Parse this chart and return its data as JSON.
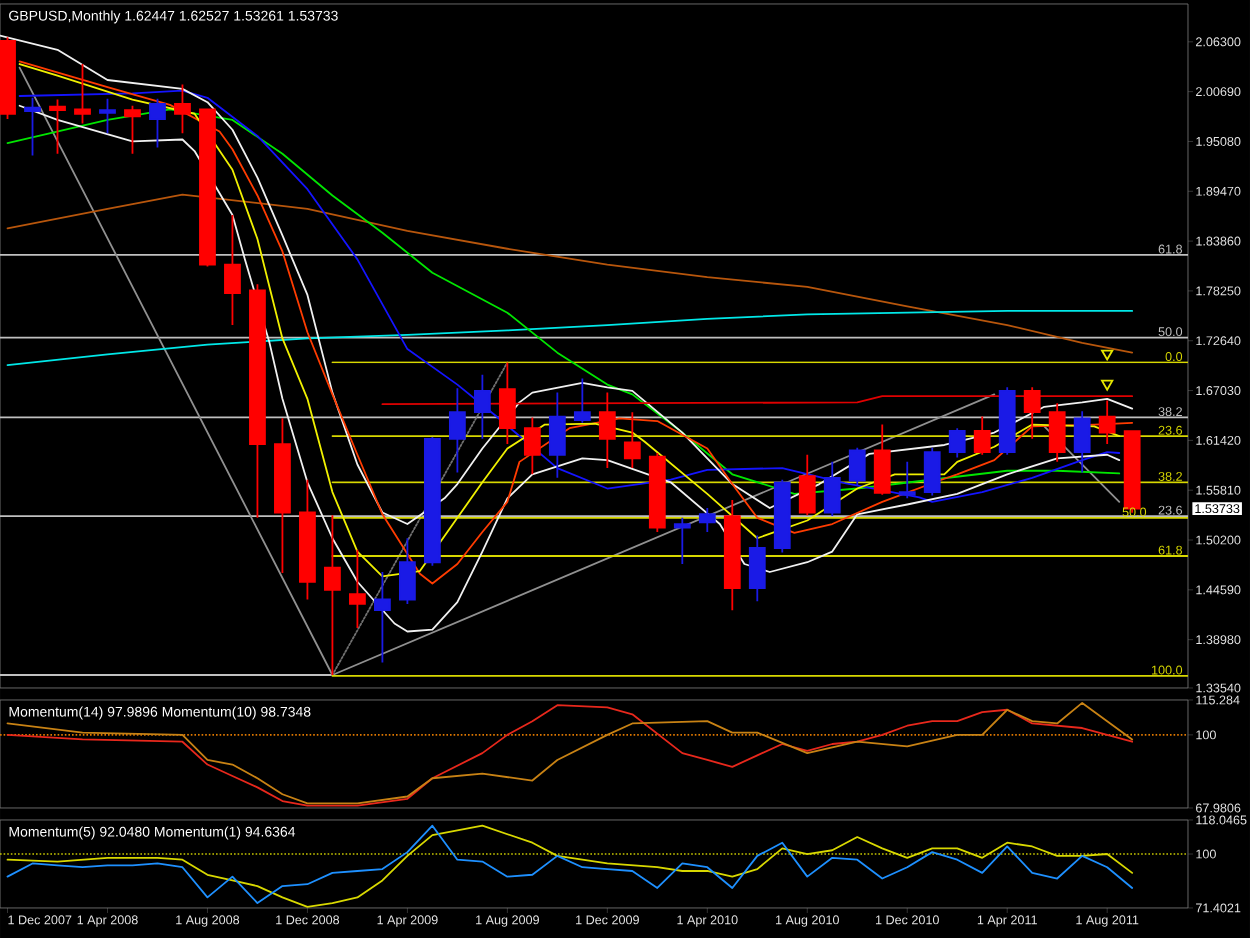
{
  "chart_data": [
    {
      "type": "candlestick",
      "title": "GBPUSD,Monthly 1.62447 1.62527 1.53261 1.53733",
      "x": [
        "2007-12",
        "2008-01",
        "2008-02",
        "2008-03",
        "2008-04",
        "2008-05",
        "2008-06",
        "2008-07",
        "2008-08",
        "2008-09",
        "2008-10",
        "2008-11",
        "2008-12",
        "2009-01",
        "2009-02",
        "2009-03",
        "2009-04",
        "2009-05",
        "2009-06",
        "2009-07",
        "2009-08",
        "2009-09",
        "2009-10",
        "2009-11",
        "2009-12",
        "2010-01",
        "2010-02",
        "2010-03",
        "2010-04",
        "2010-05",
        "2010-06",
        "2010-07",
        "2010-08",
        "2010-09",
        "2010-10",
        "2010-11",
        "2010-12",
        "2011-01",
        "2011-02",
        "2011-03",
        "2011-04",
        "2011-05",
        "2011-06",
        "2011-07",
        "2011-08",
        "2011-09"
      ],
      "ohlc": [
        [
          2.064,
          2.068,
          1.976,
          1.982
        ],
        [
          1.985,
          2.0,
          1.935,
          1.989
        ],
        [
          1.99,
          1.998,
          1.937,
          1.986
        ],
        [
          1.987,
          2.038,
          1.971,
          1.982
        ],
        [
          1.983,
          1.999,
          1.96,
          1.986
        ],
        [
          1.986,
          1.991,
          1.937,
          1.979
        ],
        [
          1.976,
          1.999,
          1.944,
          1.993
        ],
        [
          1.993,
          2.015,
          1.96,
          1.982
        ],
        [
          1.987,
          1.988,
          1.81,
          1.812
        ],
        [
          1.812,
          1.868,
          1.744,
          1.78
        ],
        [
          1.783,
          1.79,
          1.527,
          1.61
        ],
        [
          1.61,
          1.639,
          1.465,
          1.533
        ],
        [
          1.533,
          1.57,
          1.435,
          1.455
        ],
        [
          1.471,
          1.53,
          1.35,
          1.446
        ],
        [
          1.441,
          1.491,
          1.403,
          1.43
        ],
        [
          1.423,
          1.466,
          1.364,
          1.435
        ],
        [
          1.435,
          1.504,
          1.43,
          1.477
        ],
        [
          1.477,
          1.618,
          1.473,
          1.616
        ],
        [
          1.616,
          1.673,
          1.578,
          1.646
        ],
        [
          1.646,
          1.688,
          1.616,
          1.67
        ],
        [
          1.672,
          1.702,
          1.61,
          1.628
        ],
        [
          1.628,
          1.64,
          1.576,
          1.598
        ],
        [
          1.598,
          1.668,
          1.572,
          1.641
        ],
        [
          1.637,
          1.684,
          1.634,
          1.646
        ],
        [
          1.646,
          1.668,
          1.583,
          1.616
        ],
        [
          1.612,
          1.646,
          1.583,
          1.594
        ],
        [
          1.596,
          1.6,
          1.511,
          1.516
        ],
        [
          1.516,
          1.527,
          1.475,
          1.52
        ],
        [
          1.522,
          1.538,
          1.511,
          1.531
        ],
        [
          1.529,
          1.547,
          1.423,
          1.448
        ],
        [
          1.448,
          1.507,
          1.433,
          1.493
        ],
        [
          1.493,
          1.57,
          1.488,
          1.567
        ],
        [
          1.574,
          1.598,
          1.53,
          1.533
        ],
        [
          1.533,
          1.59,
          1.529,
          1.572
        ],
        [
          1.569,
          1.606,
          1.564,
          1.603
        ],
        [
          1.603,
          1.632,
          1.553,
          1.555
        ],
        [
          1.553,
          1.59,
          1.549,
          1.556
        ],
        [
          1.556,
          1.606,
          1.552,
          1.601
        ],
        [
          1.601,
          1.628,
          1.595,
          1.625
        ],
        [
          1.625,
          1.641,
          1.598,
          1.601
        ],
        [
          1.601,
          1.674,
          1.598,
          1.67
        ],
        [
          1.67,
          1.674,
          1.616,
          1.646
        ],
        [
          1.646,
          1.656,
          1.59,
          1.601
        ],
        [
          1.601,
          1.647,
          1.578,
          1.639
        ],
        [
          1.641,
          1.659,
          1.61,
          1.623
        ],
        [
          1.62447,
          1.62527,
          1.53261,
          1.53733
        ]
      ],
      "colors": [
        "#ff0000",
        "#1a1ae6",
        "#ff0000",
        "#ff0000",
        "#1a1ae6",
        "#ff0000",
        "#1a1ae6",
        "#ff0000",
        "#ff0000",
        "#ff0000",
        "#ff0000",
        "#ff0000",
        "#ff0000",
        "#ff0000",
        "#ff0000",
        "#1a1ae6",
        "#1a1ae6",
        "#1a1ae6",
        "#1a1ae6",
        "#1a1ae6",
        "#ff0000",
        "#ff0000",
        "#1a1ae6",
        "#1a1ae6",
        "#ff0000",
        "#ff0000",
        "#ff0000",
        "#1a1ae6",
        "#1a1ae6",
        "#ff0000",
        "#1a1ae6",
        "#1a1ae6",
        "#ff0000",
        "#1a1ae6",
        "#1a1ae6",
        "#ff0000",
        "#1a1ae6",
        "#1a1ae6",
        "#1a1ae6",
        "#ff0000",
        "#1a1ae6",
        "#ff0000",
        "#ff0000",
        "#1a1ae6",
        "#ff0000",
        "#ff0000"
      ],
      "series": [
        {
          "type": "line",
          "name": "61.8",
          "color": "#c0c0c0",
          "x": [
            "2007-11-22",
            "2011-11-08"
          ],
          "values": [
            1.823,
            1.823
          ]
        },
        {
          "type": "line",
          "name": "50.0",
          "color": "#c0c0c0",
          "x": [
            "2007-11-22",
            "2011-11-08"
          ],
          "values": [
            1.73,
            1.73
          ]
        },
        {
          "type": "line",
          "name": "38.2",
          "color": "#c0c0c0",
          "x": [
            "2007-11-22",
            "2011-11-08"
          ],
          "values": [
            1.64,
            1.64
          ]
        },
        {
          "type": "line",
          "name": "23.6",
          "color": "#c0c0c0",
          "x": [
            "2007-11-22",
            "2011-11-08"
          ],
          "values": [
            1.529,
            1.529
          ]
        },
        {
          "type": "line",
          "color": "#c0c0c0",
          "x": [
            "2007-11-22",
            "2009-01"
          ],
          "values": [
            1.35,
            1.35
          ]
        },
        {
          "type": "line",
          "color": "#909090",
          "x": [
            "2007-12-16",
            "2009-01"
          ],
          "values": [
            2.034,
            1.35
          ]
        },
        {
          "type": "line",
          "color": "#909090",
          "x": [
            "2009-01",
            "2011-03-16"
          ],
          "values": [
            1.35,
            1.666
          ]
        },
        {
          "type": "line",
          "color": "#909090",
          "x": [
            "2011-05-16",
            "2011-08-16"
          ],
          "values": [
            1.63,
            1.545
          ]
        },
        {
          "type": "line",
          "color": "#707070",
          "line_style": "dotted",
          "x": [
            "2009-01",
            "2009-08"
          ],
          "values": [
            1.35,
            1.702
          ]
        },
        {
          "type": "line",
          "name": "0.0",
          "color": "#d8d800",
          "x": [
            "2009-01",
            "2011-11-08"
          ],
          "values": [
            1.702,
            1.702
          ]
        },
        {
          "type": "line",
          "name": "23.6",
          "color": "#d8d800",
          "x": [
            "2009-01",
            "2011-11-08"
          ],
          "values": [
            1.619,
            1.619
          ]
        },
        {
          "type": "line",
          "name": "38.2",
          "color": "#d8d800",
          "x": [
            "2009-01",
            "2011-11-08"
          ],
          "values": [
            1.567,
            1.567
          ]
        },
        {
          "type": "line",
          "name": "50.0",
          "color": "#d8d800",
          "x": [
            "2009-01",
            "2011-11-08"
          ],
          "values": [
            1.527,
            1.527
          ]
        },
        {
          "type": "line",
          "name": "61.8",
          "color": "#d8d800",
          "x": [
            "2009-01",
            "2011-11-08"
          ],
          "values": [
            1.484,
            1.484
          ]
        },
        {
          "type": "line",
          "name": "100.0",
          "color": "#d8d800",
          "x": [
            "2009-01",
            "2011-11-08"
          ],
          "values": [
            1.349,
            1.349
          ]
        },
        {
          "type": "line",
          "color": "#b8560c",
          "x": [
            "2007-12",
            "2008-04",
            "2008-07",
            "2008-12",
            "2009-04",
            "2009-08",
            "2009-12",
            "2010-04",
            "2010-08",
            "2010-12",
            "2011-04",
            "2011-07",
            "2011-09"
          ],
          "values": [
            1.853,
            1.875,
            1.891,
            1.875,
            1.85,
            1.83,
            1.812,
            1.798,
            1.787,
            1.765,
            1.744,
            1.724,
            1.713
          ]
        },
        {
          "type": "line",
          "color": "#00e8e8",
          "x": [
            "2007-12",
            "2008-04",
            "2008-08",
            "2008-12",
            "2009-04",
            "2009-08",
            "2009-12",
            "2010-04",
            "2010-08",
            "2010-12",
            "2011-04",
            "2011-09"
          ],
          "values": [
            1.699,
            1.711,
            1.722,
            1.729,
            1.733,
            1.738,
            1.744,
            1.751,
            1.756,
            1.758,
            1.76,
            1.76
          ]
        },
        {
          "type": "line",
          "color": "#00e600",
          "x": [
            "2007-12",
            "2008-04",
            "2008-06-16",
            "2008-09",
            "2008-11",
            "2009-01",
            "2009-03",
            "2009-05",
            "2009-08",
            "2009-10",
            "2009-12",
            "2010-01",
            "2010-03",
            "2010-05",
            "2010-07-16",
            "2010-10",
            "2011-04",
            "2011-06",
            "2011-08-16"
          ],
          "values": [
            1.949,
            1.975,
            1.987,
            1.975,
            1.937,
            1.89,
            1.848,
            1.803,
            1.758,
            1.713,
            1.677,
            1.666,
            1.623,
            1.576,
            1.554,
            1.56,
            1.58,
            1.58,
            1.577
          ]
        },
        {
          "type": "line",
          "color": "#1414ff",
          "x": [
            "2007-12-16",
            "2008-05",
            "2008-07",
            "2008-08",
            "2008-10",
            "2008-12",
            "2009-02",
            "2009-04",
            "2009-06",
            "2009-07-16",
            "2009-10",
            "2009-12",
            "2010-02-16",
            "2010-04",
            "2010-07",
            "2010-09-16",
            "2010-12-16",
            "2011-01",
            "2011-03",
            "2011-05",
            "2011-07",
            "2011-08",
            "2011-08-16"
          ],
          "values": [
            2.002,
            2.005,
            2.008,
            2.0,
            1.957,
            1.897,
            1.818,
            1.717,
            1.677,
            1.643,
            1.583,
            1.56,
            1.57,
            1.581,
            1.583,
            1.566,
            1.55,
            1.545,
            1.556,
            1.572,
            1.592,
            1.601,
            1.6
          ]
        },
        {
          "type": "line",
          "color": "#f0f0f0",
          "x": [
            "2007-11-22",
            "2008-02",
            "2008-04",
            "2008-07",
            "2008-08",
            "2008-09",
            "2008-10",
            "2008-11",
            "2008-12",
            "2009-01",
            "2009-02",
            "2009-03",
            "2009-04",
            "2009-05-16",
            "2009-06",
            "2009-07",
            "2009-08-16",
            "2009-09",
            "2009-11",
            "2009-12",
            "2010-01",
            "2010-03",
            "2010-05",
            "2010-06-16",
            "2010-08-16",
            "2010-10-16",
            "2011-01-16",
            "2011-03-16",
            "2011-05-16",
            "2011-07",
            "2011-08",
            "2011-09"
          ],
          "values": [
            2.07,
            2.054,
            2.02,
            2.01,
            1.995,
            1.964,
            1.91,
            1.845,
            1.778,
            1.668,
            1.587,
            1.533,
            1.52,
            1.549,
            1.565,
            1.605,
            1.657,
            1.668,
            1.679,
            1.674,
            1.67,
            1.623,
            1.565,
            1.538,
            1.565,
            1.599,
            1.609,
            1.623,
            1.652,
            1.657,
            1.661,
            1.65
          ]
        },
        {
          "type": "line",
          "color": "#f0f0f0",
          "x": [
            "2007-12-16",
            "2008-02",
            "2008-05",
            "2008-07",
            "2008-07-16",
            "2008-09",
            "2008-09-16",
            "2008-10-16",
            "2008-11",
            "2008-12",
            "2009-01",
            "2009-02",
            "2009-03-16",
            "2009-04",
            "2009-05",
            "2009-06",
            "2009-07",
            "2009-08",
            "2009-09",
            "2009-11",
            "2009-12",
            "2010-02-16",
            "2010-04-16",
            "2010-05-16",
            "2010-06-16",
            "2010-08",
            "2010-09",
            "2010-10",
            "2010-12",
            "2011-02",
            "2011-04",
            "2011-06",
            "2011-08",
            "2011-08-16"
          ],
          "values": [
            1.991,
            1.975,
            1.951,
            1.953,
            1.94,
            1.868,
            1.818,
            1.724,
            1.661,
            1.567,
            1.504,
            1.455,
            1.408,
            1.399,
            1.401,
            1.432,
            1.489,
            1.549,
            1.576,
            1.594,
            1.592,
            1.567,
            1.52,
            1.475,
            1.466,
            1.477,
            1.489,
            1.531,
            1.542,
            1.554,
            1.576,
            1.594,
            1.598,
            1.592
          ]
        },
        {
          "type": "line",
          "color": "#ff3c00",
          "x": [
            "2007-12-16",
            "2008-04",
            "2008-06-16",
            "2008-08-16",
            "2008-09",
            "2008-10",
            "2008-11",
            "2008-12",
            "2009-01",
            "2009-02",
            "2009-03",
            "2009-04-16",
            "2009-05",
            "2009-06",
            "2009-07",
            "2009-08",
            "2009-08-16",
            "2009-10-16",
            "2009-12-16",
            "2010-02",
            "2010-04",
            "2010-05",
            "2010-06",
            "2010-07-16",
            "2010-09",
            "2010-11",
            "2011-01-16",
            "2011-02",
            "2011-03-16",
            "2011-05",
            "2011-07-16",
            "2011-09"
          ],
          "values": [
            2.041,
            2.012,
            1.992,
            1.962,
            1.942,
            1.89,
            1.827,
            1.736,
            1.666,
            1.598,
            1.531,
            1.464,
            1.453,
            1.475,
            1.511,
            1.545,
            1.59,
            1.628,
            1.639,
            1.636,
            1.605,
            1.565,
            1.527,
            1.51,
            1.52,
            1.545,
            1.571,
            1.576,
            1.592,
            1.63,
            1.632,
            1.634
          ]
        },
        {
          "type": "line",
          "color": "#f0f000",
          "x": [
            "2007-12-16",
            "2008-02",
            "2008-05",
            "2008-07-16",
            "2008-09",
            "2008-10",
            "2008-11",
            "2008-12",
            "2009-01",
            "2009-02",
            "2009-03",
            "2009-04-16",
            "2009-06",
            "2009-07",
            "2009-08",
            "2009-09-16",
            "2009-11-16",
            "2010-01",
            "2010-01-16",
            "2010-04",
            "2010-06",
            "2010-08",
            "2010-10",
            "2010-11-16",
            "2011-01-16",
            "2011-02",
            "2011-03-16",
            "2011-05",
            "2011-07-16",
            "2011-08-16"
          ],
          "values": [
            2.038,
            2.025,
            1.998,
            1.982,
            1.919,
            1.841,
            1.729,
            1.661,
            1.556,
            1.489,
            1.461,
            1.467,
            1.527,
            1.567,
            1.605,
            1.632,
            1.633,
            1.623,
            1.613,
            1.554,
            1.504,
            1.524,
            1.56,
            1.576,
            1.576,
            1.59,
            1.607,
            1.632,
            1.63,
            1.619
          ]
        },
        {
          "type": "line",
          "color": "#e00000",
          "x": [
            "2009-03",
            "2010-10",
            "2010-11",
            "2011-09"
          ],
          "values": [
            1.655,
            1.657,
            1.664,
            1.664
          ]
        },
        {
          "type": "scatter",
          "marker": "triangle",
          "color": "#e6e600",
          "x": [
            "2011-08",
            "2011-08"
          ],
          "values": [
            1.712,
            1.678
          ]
        }
      ],
      "xlim": [
        "2007-11-22",
        "2011-11-08"
      ],
      "ylim": [
        1.3354,
        2.1056
      ],
      "yticks": [
        {
          "value": 2.063,
          "label": "2.06300"
        },
        {
          "value": 2.0069,
          "label": "2.00690"
        },
        {
          "value": 1.9508,
          "label": "1.95080"
        },
        {
          "value": 1.8947,
          "label": "1.89470"
        },
        {
          "value": 1.8386,
          "label": "1.83860"
        },
        {
          "value": 1.7825,
          "label": "1.78250"
        },
        {
          "value": 1.7264,
          "label": "1.72640"
        },
        {
          "value": 1.6703,
          "label": "1.67030"
        },
        {
          "value": 1.6142,
          "label": "1.61420"
        },
        {
          "value": 1.5581,
          "label": "1.55810"
        },
        {
          "value": 1.502,
          "label": "1.50200"
        },
        {
          "value": 1.4459,
          "label": "1.44590"
        },
        {
          "value": 1.3898,
          "label": "1.38980"
        },
        {
          "value": 1.3354,
          "label": "1.33540"
        }
      ],
      "annotations": [
        "1.53733"
      ],
      "tick_labels": "y"
    },
    {
      "type": "line",
      "title": "Momentum(14) 97.9896 Momentum(10) 98.7348",
      "series": [
        {
          "color": "#e8281c",
          "x": [
            "2007-12",
            "2008-03",
            "2008-07",
            "2008-08",
            "2008-09",
            "2008-10",
            "2008-11",
            "2008-12",
            "2009-02",
            "2009-04",
            "2009-05",
            "2009-07",
            "2009-08",
            "2009-09",
            "2009-10",
            "2009-12",
            "2010-01",
            "2010-03",
            "2010-04",
            "2010-05",
            "2010-06",
            "2010-07",
            "2010-08",
            "2010-09",
            "2010-10",
            "2010-11",
            "2010-12",
            "2011-01",
            "2011-02",
            "2011-03",
            "2011-04",
            "2011-05",
            "2011-06",
            "2011-07",
            "2011-08",
            "2011-09"
          ],
          "values": [
            100,
            98,
            97,
            87,
            82,
            77,
            71,
            69,
            69,
            72,
            81,
            92,
            100,
            106,
            113,
            112,
            109,
            92,
            89,
            86,
            91,
            96,
            93,
            96,
            97,
            100,
            104,
            106,
            106,
            110,
            111,
            105,
            104,
            103,
            100,
            97
          ]
        },
        {
          "color": "#c88214",
          "x": [
            "2007-12",
            "2008-03",
            "2008-07",
            "2008-08",
            "2008-09",
            "2008-10",
            "2008-11",
            "2008-12",
            "2009-02",
            "2009-04",
            "2009-05",
            "2009-07",
            "2009-09",
            "2009-10",
            "2009-12",
            "2010-01",
            "2010-04",
            "2010-05",
            "2010-06",
            "2010-08",
            "2010-10",
            "2010-12",
            "2011-02",
            "2011-03",
            "2011-04",
            "2011-05",
            "2011-06",
            "2011-07",
            "2011-08",
            "2011-09"
          ],
          "values": [
            105,
            101,
            100,
            89,
            87,
            81,
            74,
            70,
            70,
            73,
            81,
            83,
            80,
            89,
            100,
            105,
            106,
            101,
            101,
            92,
            97,
            95,
            100,
            100,
            111,
            106,
            105,
            114,
            106,
            98
          ]
        }
      ],
      "xlim": [
        "2007-11-22",
        "2011-11-08"
      ],
      "ylim": [
        67.9806,
        115.284
      ],
      "yticks": [
        115.284,
        100,
        67.9806
      ],
      "ref_lines": [
        {
          "axis": "y",
          "value": 100,
          "color": "#e07800",
          "line_style": "dotted"
        }
      ],
      "tick_labels": "y"
    },
    {
      "type": "line",
      "title": "Momentum(5) 92.0480 Momentum(1) 94.6364",
      "series": [
        {
          "color": "#d8d800",
          "x": [
            "2007-12",
            "2008-02",
            "2008-04",
            "2008-06",
            "2008-07",
            "2008-08",
            "2008-09",
            "2008-10",
            "2008-11",
            "2008-12",
            "2009-01",
            "2009-02",
            "2009-03",
            "2009-04",
            "2009-05",
            "2009-07",
            "2009-09",
            "2009-10",
            "2009-12",
            "2010-02",
            "2010-03",
            "2010-04",
            "2010-05",
            "2010-06",
            "2010-07",
            "2010-08",
            "2010-09",
            "2010-10",
            "2010-11",
            "2010-12",
            "2011-01",
            "2011-02",
            "2011-03",
            "2011-04",
            "2011-05",
            "2011-06",
            "2011-07",
            "2011-08",
            "2011-09"
          ],
          "values": [
            97,
            96,
            98,
            98,
            97,
            89,
            86,
            83,
            77,
            72,
            74,
            77,
            86,
            99,
            110,
            115,
            106,
            99,
            95,
            93,
            91,
            91,
            88,
            92,
            103,
            100,
            102,
            109,
            103,
            98,
            103,
            103,
            98,
            106,
            104,
            99,
            99,
            100,
            90
          ]
        },
        {
          "color": "#1e90ff",
          "x": [
            "2007-12",
            "2008-01",
            "2008-02",
            "2008-03",
            "2008-04",
            "2008-05",
            "2008-06",
            "2008-07",
            "2008-08",
            "2008-09",
            "2008-10",
            "2008-11",
            "2008-12",
            "2009-01",
            "2009-02",
            "2009-03",
            "2009-04",
            "2009-05",
            "2009-06",
            "2009-07",
            "2009-08",
            "2009-09",
            "2009-10",
            "2009-11",
            "2009-12",
            "2010-01",
            "2010-02",
            "2010-03",
            "2010-04",
            "2010-05",
            "2010-06",
            "2010-07",
            "2010-08",
            "2010-09",
            "2010-10",
            "2010-11",
            "2010-12",
            "2011-01",
            "2011-02",
            "2011-03",
            "2011-04",
            "2011-05",
            "2011-06",
            "2011-07",
            "2011-08",
            "2011-09"
          ],
          "values": [
            88,
            95,
            94,
            93,
            94,
            94,
            95,
            93,
            77,
            88,
            74,
            83,
            84,
            90,
            91,
            92,
            101,
            115,
            97,
            96,
            88,
            89,
            99,
            93,
            92,
            91,
            82,
            95,
            93,
            82,
            99,
            106,
            88,
            98,
            97,
            87,
            93,
            101,
            97,
            90,
            104,
            90,
            87,
            99,
            93,
            82
          ]
        }
      ],
      "xlim": [
        "2007-11-22",
        "2011-11-08"
      ],
      "ylim": [
        71.4021,
        118.0465
      ],
      "yticks": [
        118.0465,
        100,
        71.4021
      ],
      "xticks": [
        {
          "value": "2007-12-01",
          "label": "1 Dec 2007"
        },
        {
          "value": "2008-04-01",
          "label": "1 Apr 2008"
        },
        {
          "value": "2008-08-01",
          "label": "1 Aug 2008"
        },
        {
          "value": "2008-12-01",
          "label": "1 Dec 2008"
        },
        {
          "value": "2009-04-01",
          "label": "1 Apr 2009"
        },
        {
          "value": "2009-08-01",
          "label": "1 Aug 2009"
        },
        {
          "value": "2009-12-01",
          "label": "1 Dec 2009"
        },
        {
          "value": "2010-04-01",
          "label": "1 Apr 2010"
        },
        {
          "value": "2010-08-01",
          "label": "1 Aug 2010"
        },
        {
          "value": "2010-12-01",
          "label": "1 Dec 2010"
        },
        {
          "value": "2011-04-01",
          "label": "1 Apr 2011"
        },
        {
          "value": "2011-08-01",
          "label": "1 Aug 2011"
        }
      ],
      "ref_lines": [
        {
          "axis": "y",
          "value": 100,
          "color": "#c8c800",
          "line_style": "dotted"
        }
      ]
    }
  ]
}
